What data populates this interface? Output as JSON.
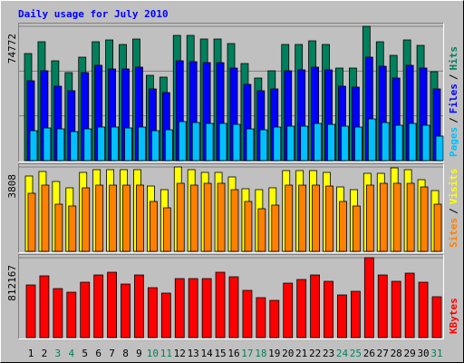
{
  "chart_data": [
    {
      "type": "bar",
      "title": "Daily usage for July 2010",
      "series": [
        {
          "name": "Hits",
          "color": "#00805c",
          "values": [
            59614,
            66181,
            55572,
            49004,
            57593,
            66181,
            67192,
            64666,
            67697,
            47489,
            46478,
            69718,
            69718,
            67697,
            67697,
            65171,
            54056,
            45973,
            50015,
            64666,
            64666,
            66686,
            64666,
            51530,
            51530,
            74772,
            66181,
            58603,
            67192,
            64161,
            49510
          ]
        },
        {
          "name": "Files",
          "color": "#0000ff",
          "values": [
            44458,
            50015,
            41426,
            38900,
            49004,
            53046,
            51025,
            51025,
            52036,
            39911,
            37890,
            55572,
            55067,
            54562,
            54562,
            51530,
            42437,
            38900,
            39911,
            50015,
            50520,
            52036,
            50520,
            41426,
            40921,
            57593,
            52541,
            45973,
            53046,
            51530,
            39911
          ]
        },
        {
          "name": "Pages",
          "color": "#00c0ff",
          "values": [
            16672,
            18187,
            17682,
            16166,
            17682,
            18692,
            18692,
            18187,
            18692,
            16672,
            17177,
            21724,
            21218,
            20713,
            20713,
            20208,
            17682,
            17177,
            18692,
            19198,
            19198,
            20713,
            20208,
            19198,
            18692,
            23239,
            21218,
            19703,
            20713,
            19703,
            13640
          ]
        }
      ],
      "legend_separator": "/",
      "ylim": [
        0,
        74772
      ],
      "yticks": [
        74772
      ]
    },
    {
      "type": "bar",
      "series": [
        {
          "name": "Visits",
          "color": "#ffff00",
          "values": [
            3399,
            3604,
            3153,
            2867,
            3563,
            3686,
            3686,
            3686,
            3686,
            2948,
            2785,
            3808,
            3686,
            3563,
            3563,
            3358,
            2826,
            2785,
            2867,
            3645,
            3645,
            3645,
            3563,
            2907,
            2785,
            3522,
            3522,
            3767,
            3686,
            3235,
            2744
          ]
        },
        {
          "name": "Sites",
          "color": "#ff8000",
          "values": [
            2621,
            2989,
            2129,
            2048,
            2867,
            2989,
            2989,
            2989,
            2989,
            2252,
            1966,
            3071,
            2989,
            3071,
            3071,
            2785,
            2252,
            1925,
            2088,
            2989,
            2989,
            2989,
            2948,
            2252,
            2048,
            2989,
            3071,
            3071,
            3071,
            2907,
            2129
          ]
        }
      ],
      "legend_separator": "/",
      "ylim": [
        0,
        3808
      ],
      "yticks": [
        3808
      ]
    },
    {
      "type": "bar",
      "series": [
        {
          "name": "KBytes",
          "color": "#ff0000",
          "values": [
            535282,
            627572,
            498366,
            461450,
            562969,
            636801,
            664488,
            544511,
            636801,
            507595,
            452221,
            599885,
            599885,
            599885,
            664488,
            618343,
            479908,
            406076,
            378389,
            553740,
            590656,
            636801,
            572198,
            433763,
            470679,
            812167,
            636801,
            572198,
            655259,
            562969,
            415305
          ]
        }
      ],
      "ylim": [
        0,
        812167
      ],
      "yticks": [
        812167
      ],
      "categories": [
        "1",
        "2",
        "3",
        "4",
        "5",
        "6",
        "7",
        "8",
        "9",
        "10",
        "11",
        "12",
        "13",
        "14",
        "15",
        "16",
        "17",
        "18",
        "19",
        "20",
        "21",
        "22",
        "23",
        "24",
        "25",
        "26",
        "27",
        "28",
        "29",
        "30",
        "31"
      ],
      "category_colors": [
        "#000000",
        "#000000",
        "#00805c",
        "#00805c",
        "#000000",
        "#000000",
        "#000000",
        "#000000",
        "#000000",
        "#00805c",
        "#00805c",
        "#000000",
        "#000000",
        "#000000",
        "#000000",
        "#000000",
        "#00805c",
        "#00805c",
        "#000000",
        "#000000",
        "#000000",
        "#000000",
        "#000000",
        "#00805c",
        "#00805c",
        "#000000",
        "#000000",
        "#000000",
        "#000000",
        "#000000",
        "#00805c"
      ]
    }
  ]
}
